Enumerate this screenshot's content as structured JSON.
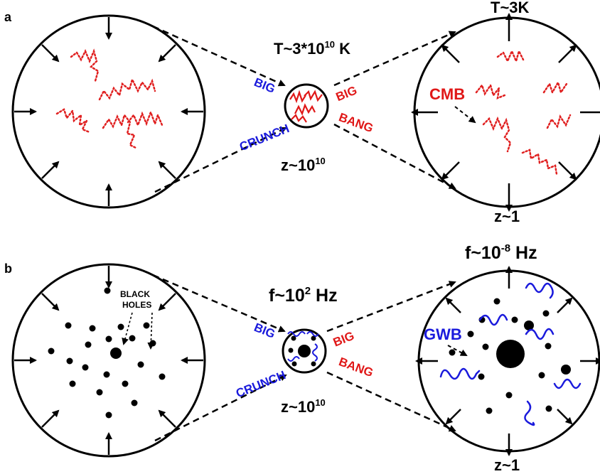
{
  "panel_a": {
    "panel_label": "a",
    "top_label": {
      "base": "T~3*10",
      "sup": "10",
      "tail": " K"
    },
    "bottom_label": {
      "base": "z~10",
      "sup": "10"
    },
    "left_side_words": [
      "BIG",
      "CRUNCH"
    ],
    "right_side_words": [
      "BIG",
      "BANG"
    ],
    "right_circle_top": "T~3K",
    "right_circle_bottom": "z~1",
    "right_circle_annotation": "CMB"
  },
  "panel_b": {
    "panel_label": "b",
    "top_label": {
      "base": "f~10",
      "sup": "2",
      "tail": " Hz"
    },
    "bottom_label": {
      "base": "z~10",
      "sup": "10"
    },
    "left_side_words": [
      "BIG",
      "CRUNCH"
    ],
    "right_side_words": [
      "BIG",
      "BANG"
    ],
    "left_circle_annotation": [
      "BLACK",
      "HOLES"
    ],
    "right_circle_top": {
      "base": "f~10",
      "sup": "-8",
      "tail": " Hz"
    },
    "right_circle_bottom": "z~1",
    "right_circle_annotation": "GWB"
  },
  "colors": {
    "crunch": "#1a1adc",
    "bang": "#e01818",
    "cmb_wave": "#e02020",
    "gwb_wave": "#1a1adc",
    "ink": "#000000"
  }
}
